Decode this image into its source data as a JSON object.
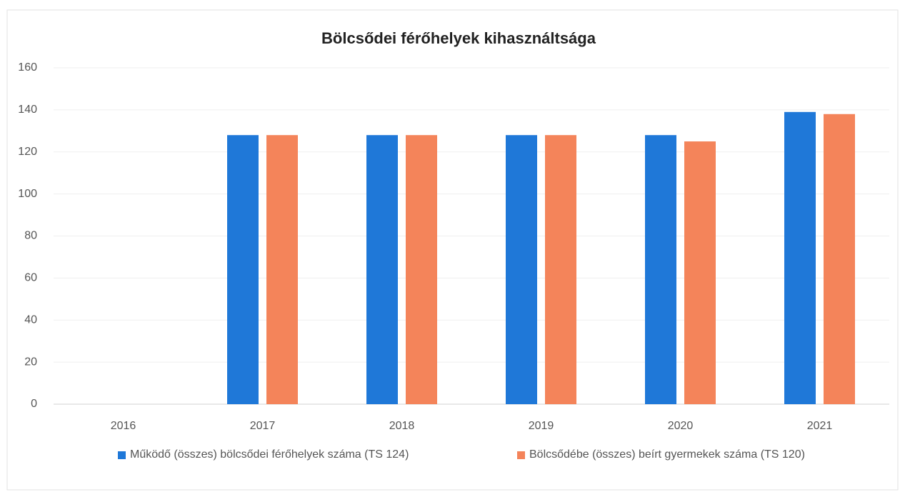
{
  "chart_data": {
    "type": "bar",
    "title": "Bölcsődei férőhelyek kihasználtsága",
    "categories": [
      "2016",
      "2017",
      "2018",
      "2019",
      "2020",
      "2021"
    ],
    "series": [
      {
        "name": "Működő (összes) bölcsődei férőhelyek száma (TS 124)",
        "color": "#1f78d8",
        "values": [
          null,
          128,
          128,
          128,
          128,
          139
        ]
      },
      {
        "name": "Bölcsődébe (összes) beírt gyermekek száma (TS 120)",
        "color": "#f4845a",
        "values": [
          null,
          128,
          128,
          128,
          125,
          138
        ]
      }
    ],
    "ylim": [
      0,
      160
    ],
    "yticks": [
      0,
      20,
      40,
      60,
      80,
      100,
      120,
      140,
      160
    ],
    "grid": true,
    "legend": "bottom"
  }
}
